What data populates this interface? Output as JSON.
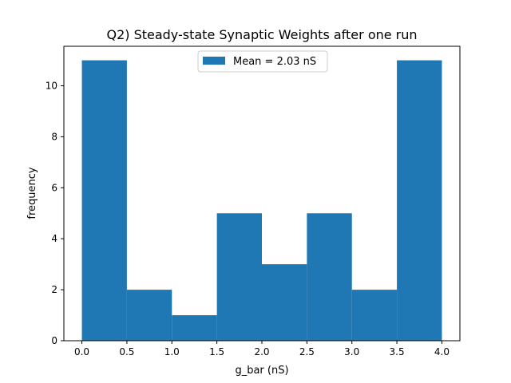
{
  "chart_data": {
    "type": "bar",
    "title": "Q2) Steady-state Synaptic Weights after one run",
    "xlabel": "g_bar (nS)",
    "ylabel": "frequency",
    "bin_edges": [
      0.0,
      0.5,
      1.0,
      1.5,
      2.0,
      2.5,
      3.0,
      3.5,
      4.0
    ],
    "values": [
      11,
      2,
      1,
      5,
      3,
      5,
      2,
      11
    ],
    "xlim": [
      -0.2,
      4.2
    ],
    "ylim": [
      0,
      11.55
    ],
    "x_ticks": [
      "0.0",
      "0.5",
      "1.0",
      "1.5",
      "2.0",
      "2.5",
      "3.0",
      "3.5",
      "4.0"
    ],
    "y_ticks": [
      "0",
      "2",
      "4",
      "6",
      "8",
      "10"
    ],
    "legend": {
      "label": "Mean = 2.03 nS",
      "placement": "top-center"
    },
    "grid": false,
    "bar_color": "#1f77b4"
  }
}
